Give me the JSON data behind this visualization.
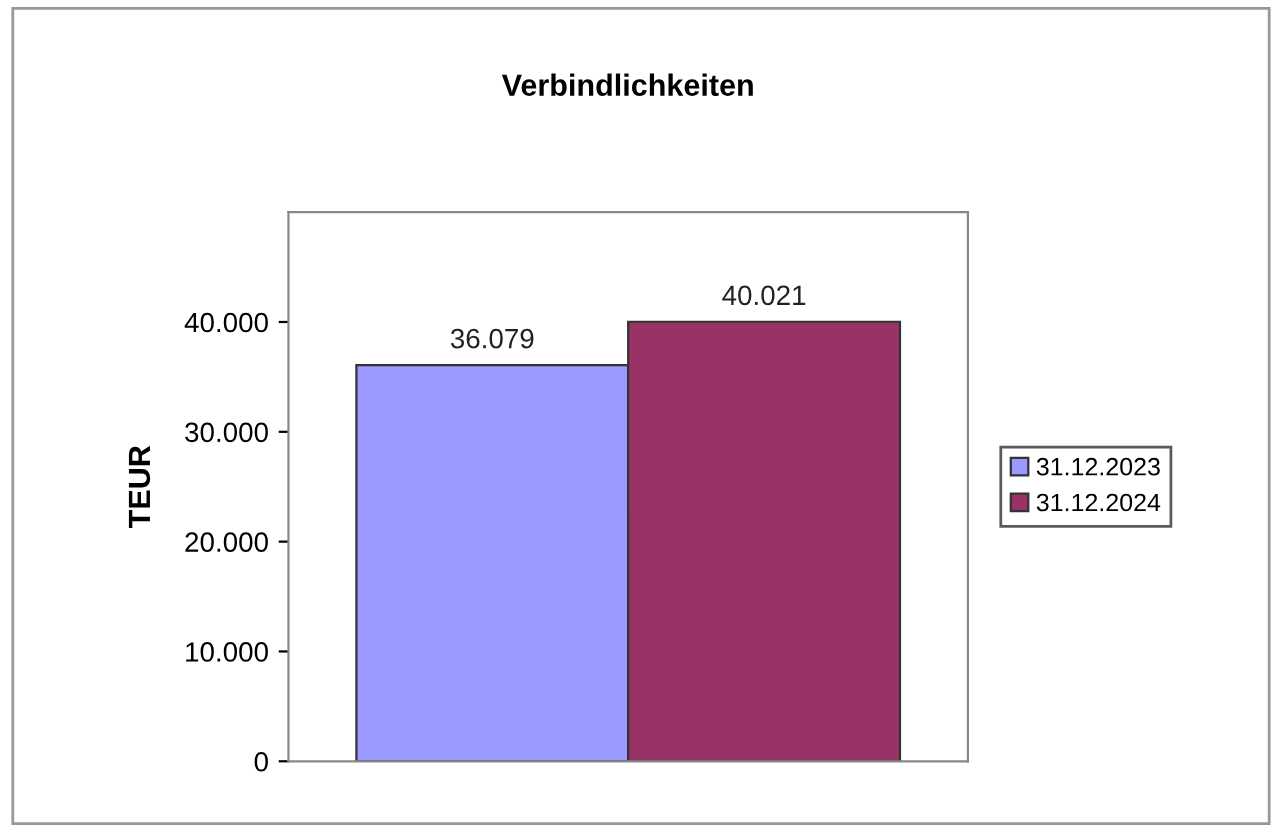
{
  "chart_data": {
    "type": "bar",
    "title": "Verbindlichkeiten",
    "ylabel": "TEUR",
    "categories": [
      null
    ],
    "series": [
      {
        "name": "31.12.2023",
        "color": "#9999ff",
        "values": [
          36079
        ],
        "value_labels": [
          "36.079"
        ]
      },
      {
        "name": "31.12.2024",
        "color": "#993366",
        "values": [
          40021
        ],
        "value_labels": [
          "40.021"
        ]
      }
    ],
    "ylim": [
      0,
      50000
    ],
    "yticks": [
      {
        "value": 0,
        "label": "0"
      },
      {
        "value": 10000,
        "label": "10.000"
      },
      {
        "value": 20000,
        "label": "20.000"
      },
      {
        "value": 30000,
        "label": "30.000"
      },
      {
        "value": 40000,
        "label": "40.000"
      }
    ],
    "legend": "right",
    "grid": false
  }
}
